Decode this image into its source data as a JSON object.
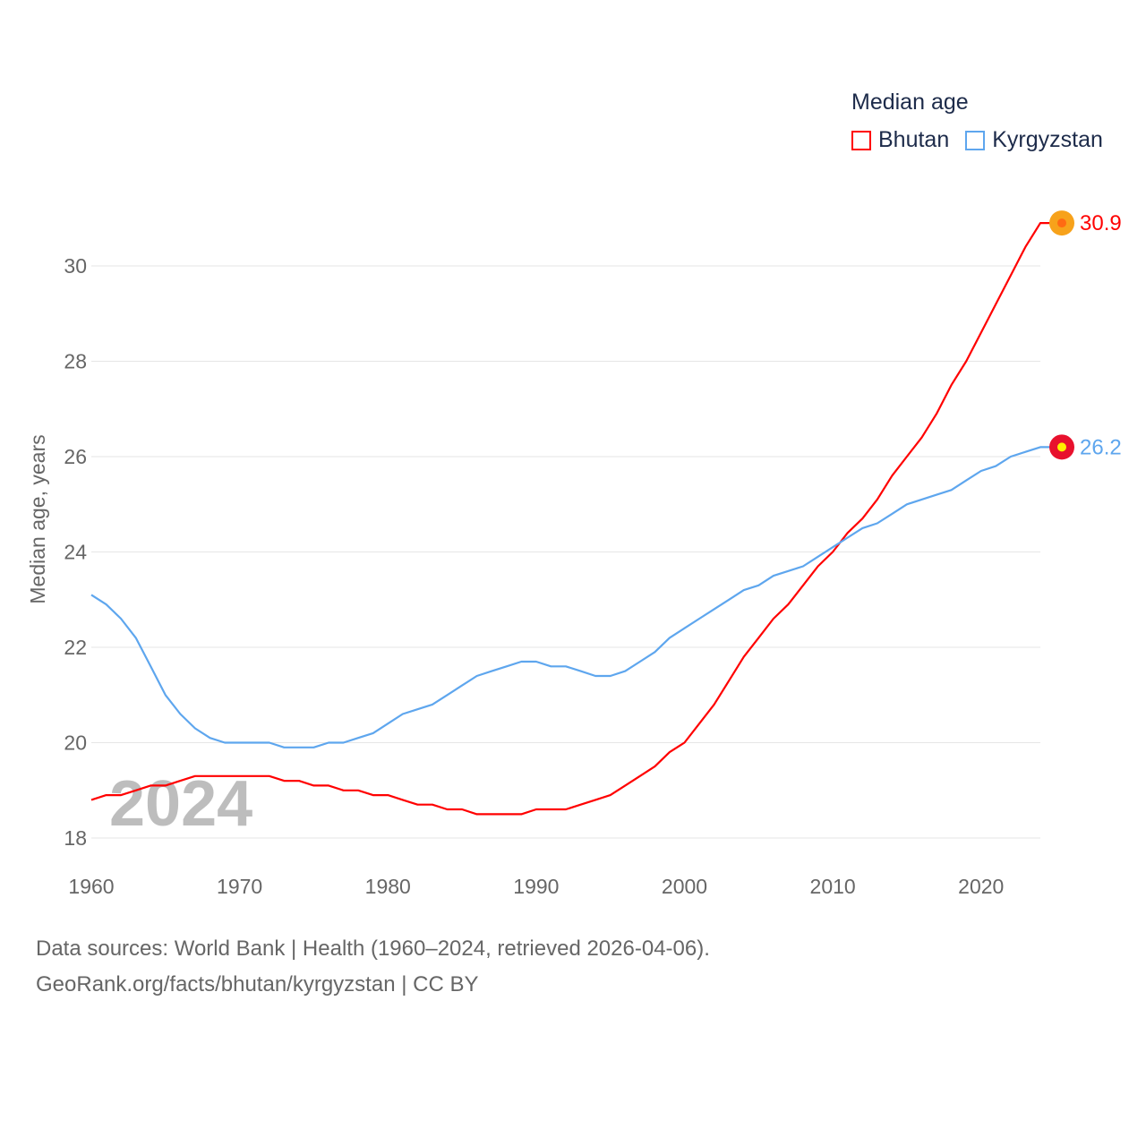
{
  "chart_data": {
    "type": "line",
    "title": "",
    "legend_title": "Median age",
    "legend_position": "top-right",
    "ylabel": "Median age, years",
    "xlabel": "",
    "xlim": [
      1960,
      2024
    ],
    "ylim": [
      18,
      31
    ],
    "xticks": [
      "1960",
      "1970",
      "1980",
      "1990",
      "2000",
      "2010",
      "2020"
    ],
    "yticks": [
      "18",
      "20",
      "22",
      "24",
      "26",
      "28",
      "30"
    ],
    "grid": true,
    "year_watermark": "2024",
    "x": [
      1960,
      1961,
      1962,
      1963,
      1964,
      1965,
      1966,
      1967,
      1968,
      1969,
      1970,
      1971,
      1972,
      1973,
      1974,
      1975,
      1976,
      1977,
      1978,
      1979,
      1980,
      1981,
      1982,
      1983,
      1984,
      1985,
      1986,
      1987,
      1988,
      1989,
      1990,
      1991,
      1992,
      1993,
      1994,
      1995,
      1996,
      1997,
      1998,
      1999,
      2000,
      2001,
      2002,
      2003,
      2004,
      2005,
      2006,
      2007,
      2008,
      2009,
      2010,
      2011,
      2012,
      2013,
      2014,
      2015,
      2016,
      2017,
      2018,
      2019,
      2020,
      2021,
      2022,
      2023,
      2024
    ],
    "series": [
      {
        "name": "Bhutan",
        "color": "#ff0000",
        "end_label": "30.9",
        "values": [
          18.8,
          18.9,
          18.9,
          19.0,
          19.1,
          19.1,
          19.2,
          19.3,
          19.3,
          19.3,
          19.3,
          19.3,
          19.3,
          19.2,
          19.2,
          19.1,
          19.1,
          19.0,
          19.0,
          18.9,
          18.9,
          18.8,
          18.7,
          18.7,
          18.6,
          18.6,
          18.5,
          18.5,
          18.5,
          18.5,
          18.6,
          18.6,
          18.6,
          18.7,
          18.8,
          18.9,
          19.1,
          19.3,
          19.5,
          19.8,
          20.0,
          20.4,
          20.8,
          21.3,
          21.8,
          22.2,
          22.6,
          22.9,
          23.3,
          23.7,
          24.0,
          24.4,
          24.7,
          25.1,
          25.6,
          26.0,
          26.4,
          26.9,
          27.5,
          28.0,
          28.6,
          29.2,
          29.8,
          30.4,
          30.9
        ]
      },
      {
        "name": "Kyrgyzstan",
        "color": "#5ea6ee",
        "end_label": "26.2",
        "values": [
          23.1,
          22.9,
          22.6,
          22.2,
          21.6,
          21.0,
          20.6,
          20.3,
          20.1,
          20.0,
          20.0,
          20.0,
          20.0,
          19.9,
          19.9,
          19.9,
          20.0,
          20.0,
          20.1,
          20.2,
          20.4,
          20.6,
          20.7,
          20.8,
          21.0,
          21.2,
          21.4,
          21.5,
          21.6,
          21.7,
          21.7,
          21.6,
          21.6,
          21.5,
          21.4,
          21.4,
          21.5,
          21.7,
          21.9,
          22.2,
          22.4,
          22.6,
          22.8,
          23.0,
          23.2,
          23.3,
          23.5,
          23.6,
          23.7,
          23.9,
          24.1,
          24.3,
          24.5,
          24.6,
          24.8,
          25.0,
          25.1,
          25.2,
          25.3,
          25.5,
          25.7,
          25.8,
          26.0,
          26.1,
          26.2
        ]
      }
    ]
  },
  "footer": {
    "line1": "Data sources: World Bank | Health (1960–2024, retrieved 2026-04-06).",
    "line2": "GeoRank.org/facts/bhutan/kyrgyzstan | CC BY"
  }
}
